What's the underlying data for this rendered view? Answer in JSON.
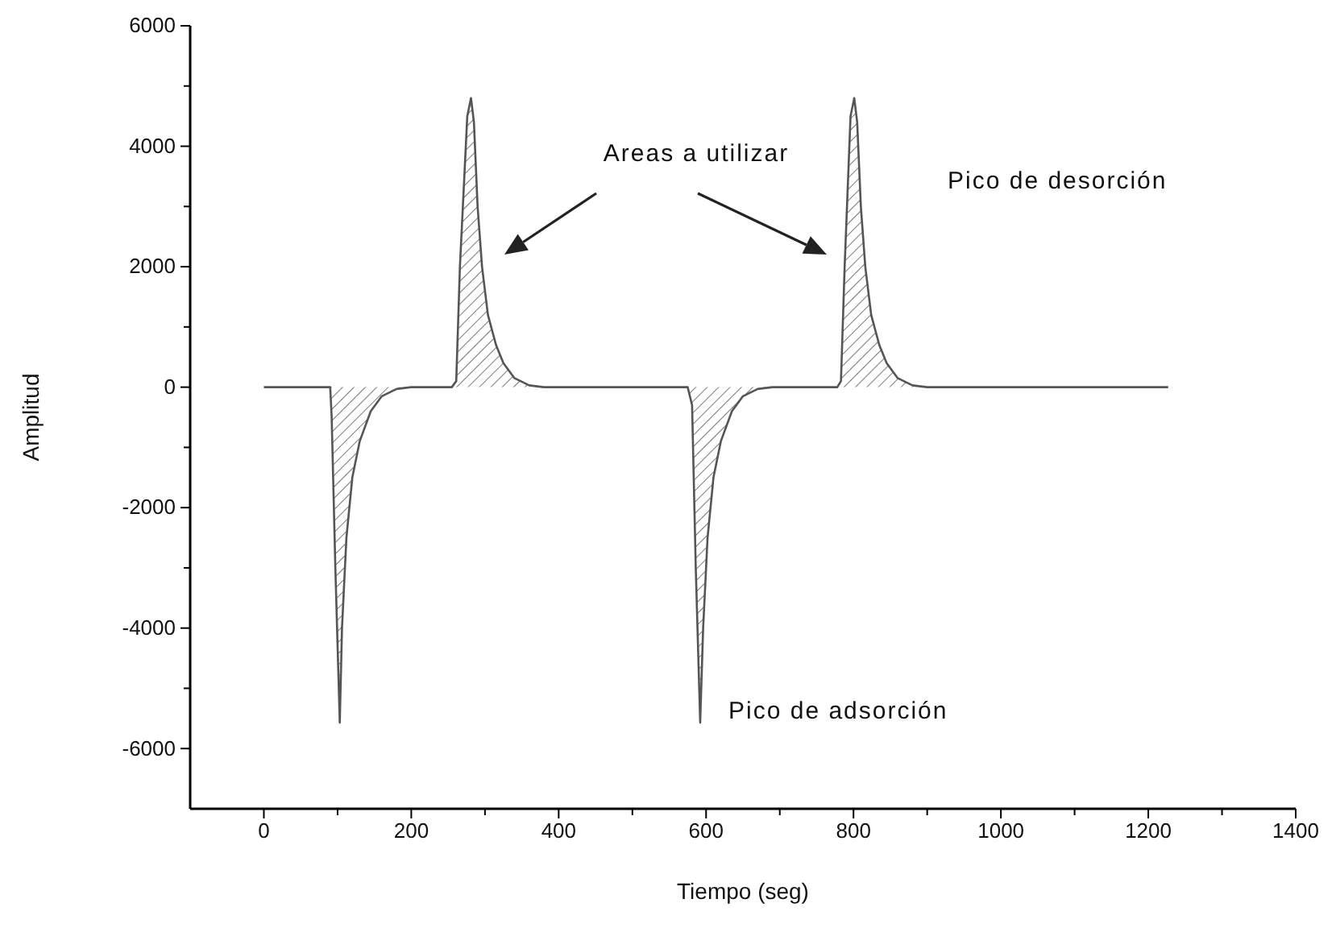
{
  "chart_data": {
    "type": "area",
    "xlabel": "Tiempo (seg)",
    "ylabel": "Amplitud",
    "annotations": [
      "Areas a utilizar",
      "Pico de desorción",
      "Pico de adsorción"
    ],
    "xlim": [
      -100,
      1400
    ],
    "ylim": [
      -7000,
      6000
    ],
    "xticks": [
      0,
      {
        "value": 100,
        "label": null
      },
      200,
      {
        "value": 300,
        "label": null
      },
      400,
      {
        "value": 500,
        "label": null
      },
      600,
      {
        "value": 700,
        "label": null
      },
      800,
      {
        "value": 900,
        "label": null
      },
      1000,
      {
        "value": 1100,
        "label": null
      },
      1200,
      {
        "value": 1300,
        "label": null
      },
      1400
    ],
    "yticks": [
      {
        "value": -5000,
        "label": null
      },
      -6000,
      -4000,
      {
        "value": -3000,
        "label": null
      },
      -2000,
      {
        "value": -1000,
        "label": null
      },
      0,
      {
        "value": 1000,
        "label": null
      },
      2000,
      {
        "value": 3000,
        "label": null
      },
      4000,
      {
        "value": 5000,
        "label": null
      },
      6000
    ],
    "grid": false,
    "series": [
      {
        "color": "#555555",
        "x": [
          0,
          90,
          92,
          97,
          103,
          106,
          112,
          120,
          130,
          145,
          160,
          180,
          200,
          255,
          261,
          266,
          276,
          281,
          285,
          290,
          296,
          304,
          315,
          325,
          340,
          360,
          380,
          575,
          581,
          586,
          592,
          596,
          602,
          610,
          620,
          635,
          650,
          670,
          690,
          778,
          783,
          788,
          796,
          801,
          805,
          810,
          816,
          824,
          835,
          845,
          860,
          880,
          900,
          1227
        ],
        "values": [
          0,
          0,
          -500,
          -3000,
          -5570,
          -4000,
          -2500,
          -1500,
          -900,
          -400,
          -150,
          -30,
          0,
          0,
          100,
          2000,
          4500,
          4800,
          4400,
          3000,
          2000,
          1200,
          700,
          400,
          150,
          30,
          0,
          0,
          -300,
          -3000,
          -5570,
          -4000,
          -2500,
          -1500,
          -900,
          -400,
          -150,
          -30,
          0,
          0,
          100,
          2000,
          4500,
          4800,
          4400,
          3000,
          2000,
          1200,
          700,
          400,
          150,
          30,
          0,
          0
        ]
      }
    ]
  }
}
